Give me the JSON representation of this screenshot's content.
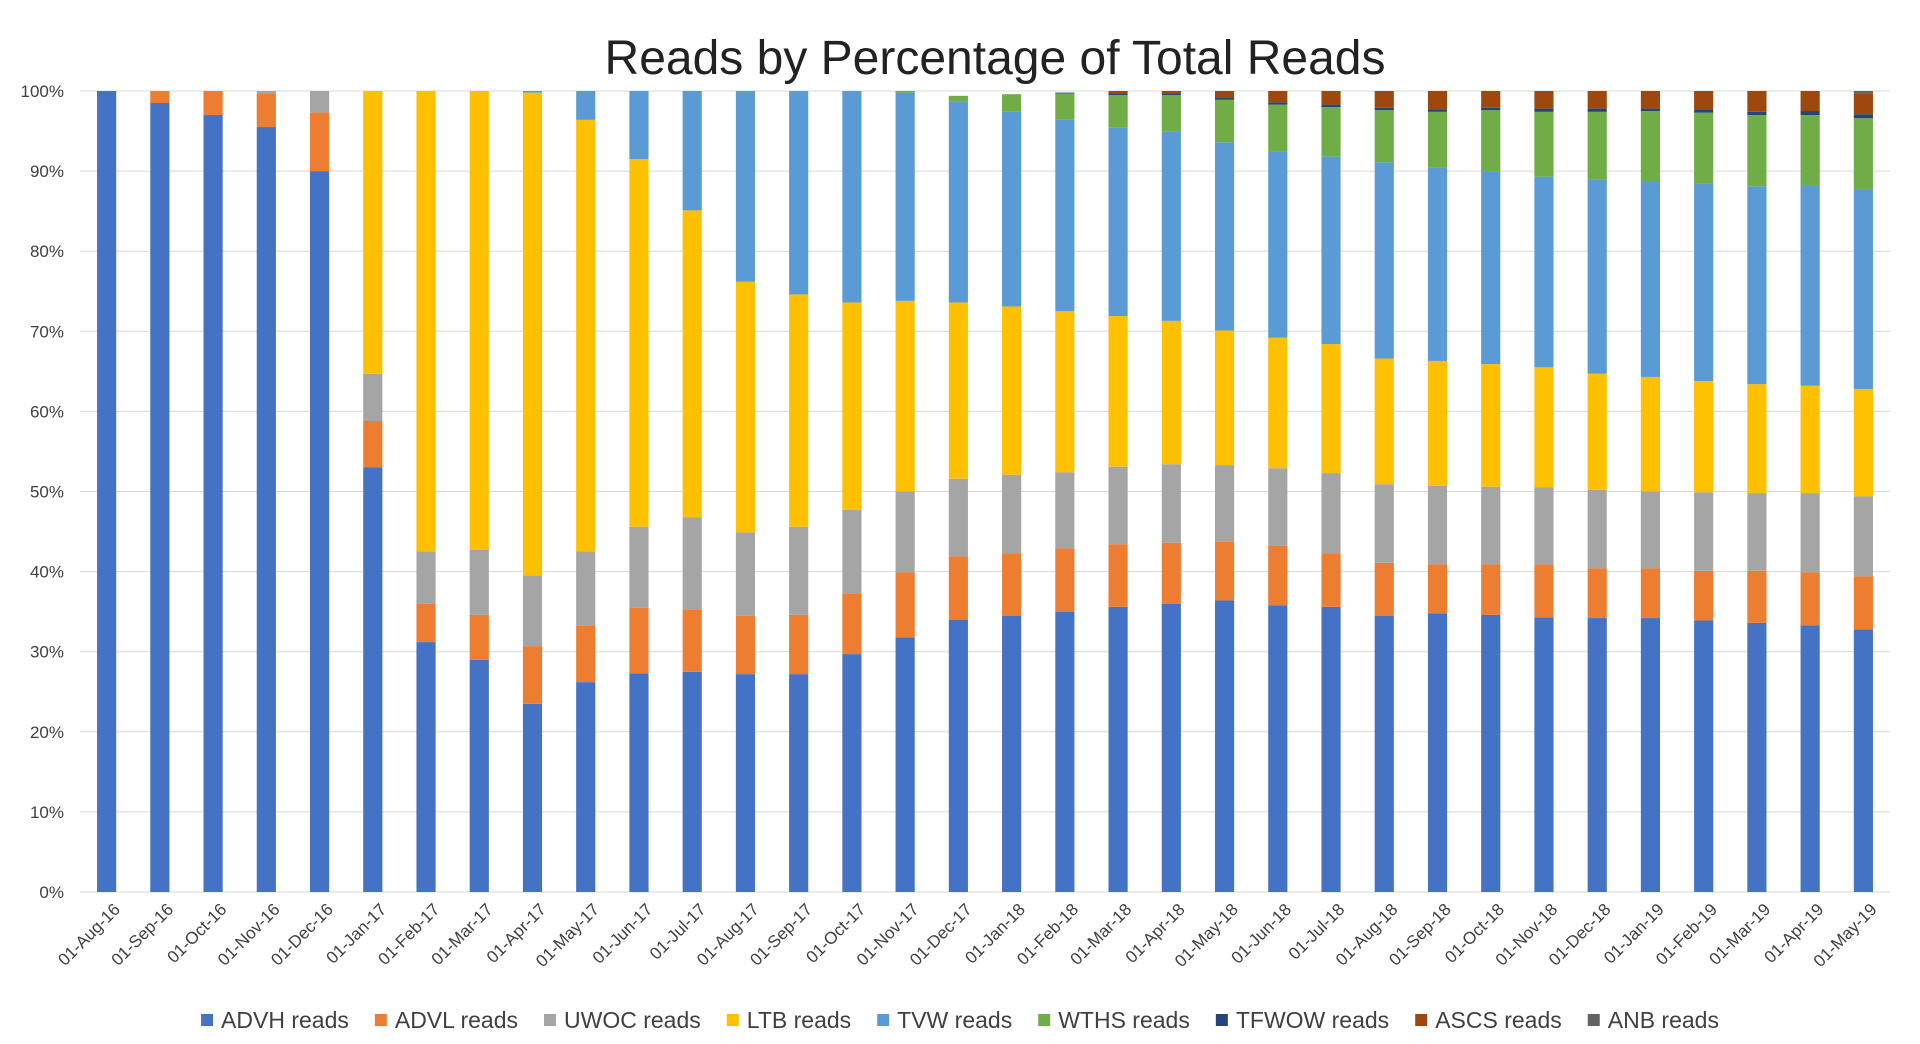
{
  "chart_data": {
    "type": "bar",
    "stacked": true,
    "title": "Reads by Percentage of Total Reads",
    "xlabel": "",
    "ylabel": "",
    "ylim": [
      0,
      100
    ],
    "y_ticks": [
      "0%",
      "10%",
      "20%",
      "30%",
      "40%",
      "50%",
      "60%",
      "70%",
      "80%",
      "90%",
      "100%"
    ],
    "grid": true,
    "legend_position": "bottom",
    "categories": [
      "01-Aug-16",
      "01-Sep-16",
      "01-Oct-16",
      "01-Nov-16",
      "01-Dec-16",
      "01-Jan-17",
      "01-Feb-17",
      "01-Mar-17",
      "01-Apr-17",
      "01-May-17",
      "01-Jun-17",
      "01-Jul-17",
      "01-Aug-17",
      "01-Sep-17",
      "01-Oct-17",
      "01-Nov-17",
      "01-Dec-17",
      "01-Jan-18",
      "01-Feb-18",
      "01-Mar-18",
      "01-Apr-18",
      "01-May-18",
      "01-Jun-18",
      "01-Jul-18",
      "01-Aug-18",
      "01-Sep-18",
      "01-Oct-18",
      "01-Nov-18",
      "01-Dec-18",
      "01-Jan-19",
      "01-Feb-19",
      "01-Mar-19",
      "01-Apr-19",
      "01-May-19"
    ],
    "series": [
      {
        "name": "ADVH reads",
        "color": "#4472c4",
        "values": [
          100,
          98.5,
          97,
          95.5,
          90,
          53,
          31.2,
          29,
          23.5,
          26.2,
          27.3,
          27.5,
          27.2,
          27.2,
          29.7,
          31.8,
          34,
          34.5,
          35,
          35.6,
          36,
          36.4,
          35.8,
          35.6,
          34.5,
          34.8,
          34.6,
          34.3,
          34.2,
          34.2,
          33.9,
          33.6,
          33.3,
          32.8
        ]
      },
      {
        "name": "ADVL reads",
        "color": "#ed7d31",
        "values": [
          0,
          1.5,
          3,
          4.2,
          7.3,
          5.8,
          4.8,
          5.6,
          7.2,
          7.1,
          8.2,
          7.8,
          7.3,
          7.4,
          7.6,
          8.1,
          7.9,
          7.8,
          7.9,
          7.8,
          7.6,
          7.3,
          7.4,
          6.7,
          6.6,
          6.1,
          6.3,
          6.6,
          6.2,
          6.2,
          6.2,
          6.5,
          6.6,
          6.6
        ]
      },
      {
        "name": "UWOC reads",
        "color": "#a5a5a5",
        "values": [
          0,
          0,
          0,
          0.3,
          2.7,
          5.9,
          6.5,
          8.1,
          8.8,
          9.2,
          10.1,
          11.5,
          10.4,
          11,
          10.4,
          10.1,
          9.7,
          9.8,
          9.5,
          9.7,
          9.8,
          9.6,
          9.7,
          10,
          9.8,
          9.8,
          9.7,
          9.6,
          9.8,
          9.6,
          9.8,
          9.7,
          9.9,
          10
        ]
      },
      {
        "name": "LTB reads",
        "color": "#ffc000",
        "values": [
          0,
          0,
          0,
          0,
          0,
          35.3,
          57.5,
          57.3,
          60.3,
          53.9,
          45.9,
          38.3,
          31.3,
          29,
          25.9,
          23.8,
          22,
          21,
          20.1,
          18.8,
          17.9,
          16.8,
          16.3,
          16.1,
          15.7,
          15.6,
          15.3,
          15,
          14.5,
          14.3,
          13.9,
          13.6,
          13.4,
          13.4
        ]
      },
      {
        "name": "TVW reads",
        "color": "#5b9bd5",
        "values": [
          0,
          0,
          0,
          0,
          0,
          0,
          0,
          0,
          0.2,
          3.6,
          8.5,
          14.9,
          23.8,
          25.4,
          26.4,
          26,
          25.1,
          24.3,
          23.9,
          23.5,
          23.6,
          23.5,
          23.3,
          23.4,
          24.5,
          24.1,
          24.1,
          23.8,
          24.2,
          24.4,
          24.6,
          24.7,
          25,
          24.9
        ]
      },
      {
        "name": "WTHS reads",
        "color": "#70ad47",
        "values": [
          0,
          0,
          0,
          0,
          0,
          0,
          0,
          0,
          0,
          0,
          0,
          0,
          0,
          0,
          0,
          0.3,
          0.7,
          2.2,
          3.3,
          4.1,
          4.6,
          5.3,
          5.8,
          6.2,
          6.5,
          7,
          7.6,
          8.1,
          8.5,
          8.8,
          8.9,
          8.9,
          8.8,
          8.9
        ]
      },
      {
        "name": "TFWOW reads",
        "color": "#264478",
        "values": [
          0,
          0,
          0,
          0,
          0,
          0,
          0,
          0,
          0,
          0,
          0,
          0,
          0,
          0,
          0,
          0,
          0,
          0,
          0.1,
          0.2,
          0.2,
          0.3,
          0.3,
          0.3,
          0.3,
          0.3,
          0.3,
          0.4,
          0.4,
          0.3,
          0.4,
          0.4,
          0.5,
          0.5
        ]
      },
      {
        "name": "ASCS reads",
        "color": "#9e480e",
        "values": [
          0,
          0,
          0,
          0,
          0,
          0,
          0,
          0,
          0,
          0,
          0,
          0,
          0,
          0,
          0,
          0,
          0,
          0,
          0,
          0.3,
          0.5,
          0.8,
          1.4,
          1.7,
          2.1,
          2.3,
          2.1,
          2.2,
          2.2,
          2.2,
          2.3,
          2.6,
          2.5,
          2.6
        ]
      },
      {
        "name": "ANB reads",
        "color": "#636363",
        "values": [
          0,
          0,
          0,
          0,
          0,
          0,
          0,
          0,
          0,
          0,
          0,
          0,
          0,
          0,
          0,
          0,
          0,
          0,
          0,
          0,
          0,
          0,
          0,
          0,
          0,
          0,
          0,
          0,
          0,
          0,
          0,
          0,
          0,
          0.3
        ]
      }
    ]
  }
}
